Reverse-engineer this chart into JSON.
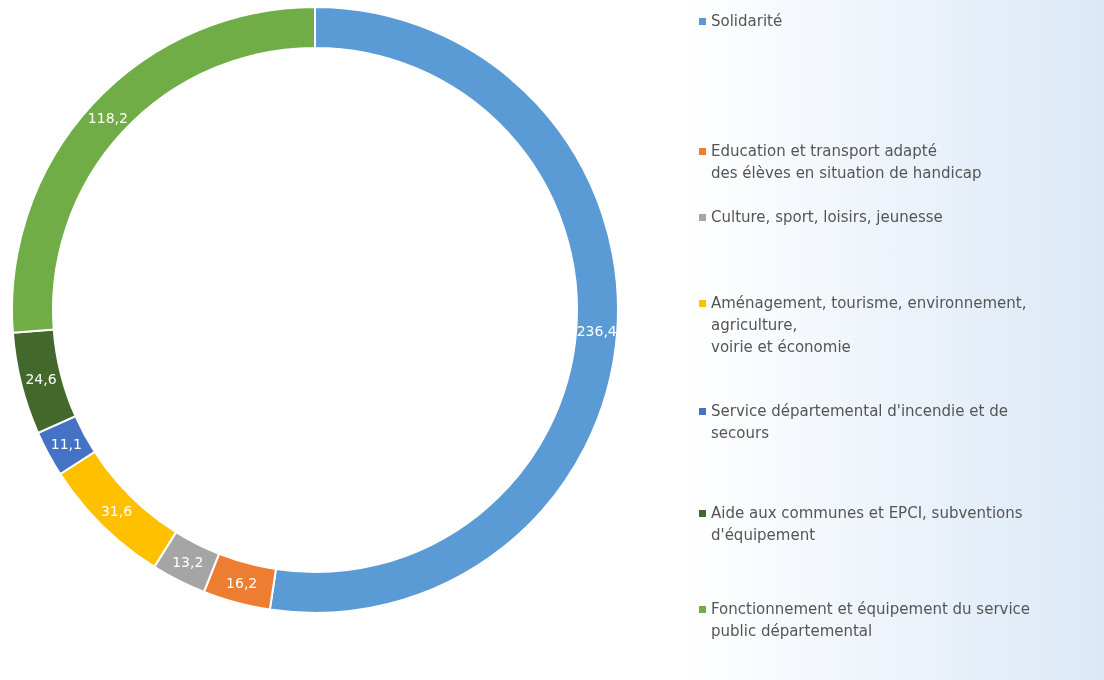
{
  "chart_data": {
    "type": "donut",
    "categories": [
      "Solidarité",
      "Education et transport adapté\ndes élèves en situation de handicap",
      "Culture, sport, loisirs, jeunesse",
      "Aménagement, tourisme, environnement,\nagriculture,\nvoirie et économie",
      "Service départemental d'incendie et de\nsecours",
      "Aide aux communes et EPCI, subventions\nd'équipement",
      "Fonctionnement et équipement du service\npublic départemental"
    ],
    "values": [
      236.4,
      16.2,
      13.2,
      31.6,
      11.1,
      24.6,
      118.2
    ],
    "value_labels": [
      "236,4",
      "16,2",
      "13,2",
      "31,6",
      "11,1",
      "24,6",
      "118,2"
    ],
    "colors": [
      "#5b9bd5",
      "#ed7d31",
      "#a5a5a5",
      "#ffc000",
      "#4472c4",
      "#43682b",
      "#70ad47"
    ],
    "legend": "right"
  }
}
